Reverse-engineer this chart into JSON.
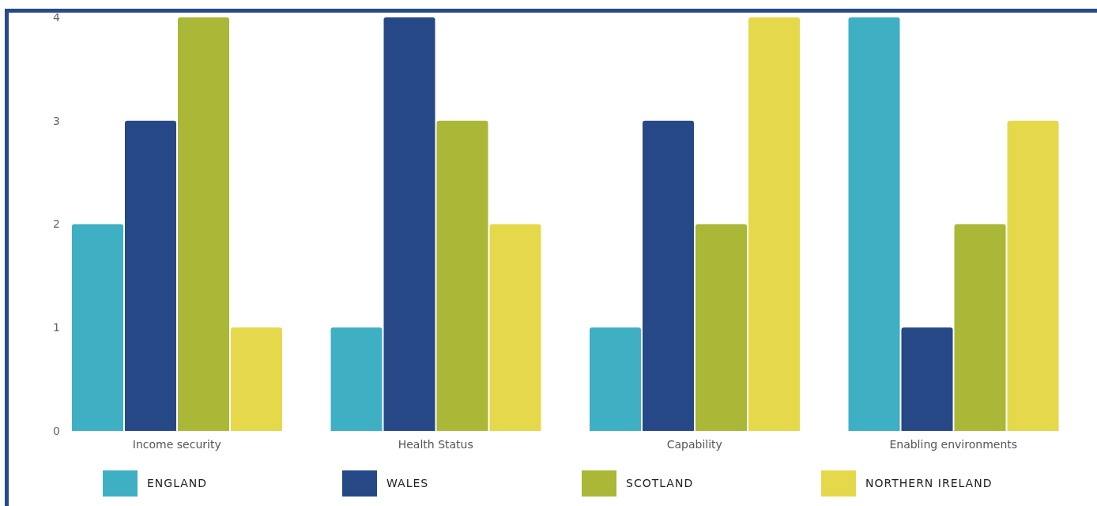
{
  "chart_data": {
    "type": "bar",
    "categories": [
      "Income security",
      "Health Status",
      "Capability",
      "Enabling environments"
    ],
    "series": [
      {
        "name": "ENGLAND",
        "color": "#3fafc4",
        "values": [
          2,
          1,
          1,
          4
        ]
      },
      {
        "name": "WALES",
        "color": "#274887",
        "values": [
          3,
          4,
          3,
          1
        ]
      },
      {
        "name": "SCOTLAND",
        "color": "#aab737",
        "values": [
          4,
          3,
          2,
          2
        ]
      },
      {
        "name": "NORTHERN IRELAND",
        "color": "#e6d84b",
        "values": [
          1,
          2,
          4,
          3
        ]
      }
    ],
    "ylim": [
      0,
      4
    ],
    "yticks": [
      0,
      1,
      2,
      3,
      4
    ],
    "grid": false,
    "legend": "bottom"
  }
}
